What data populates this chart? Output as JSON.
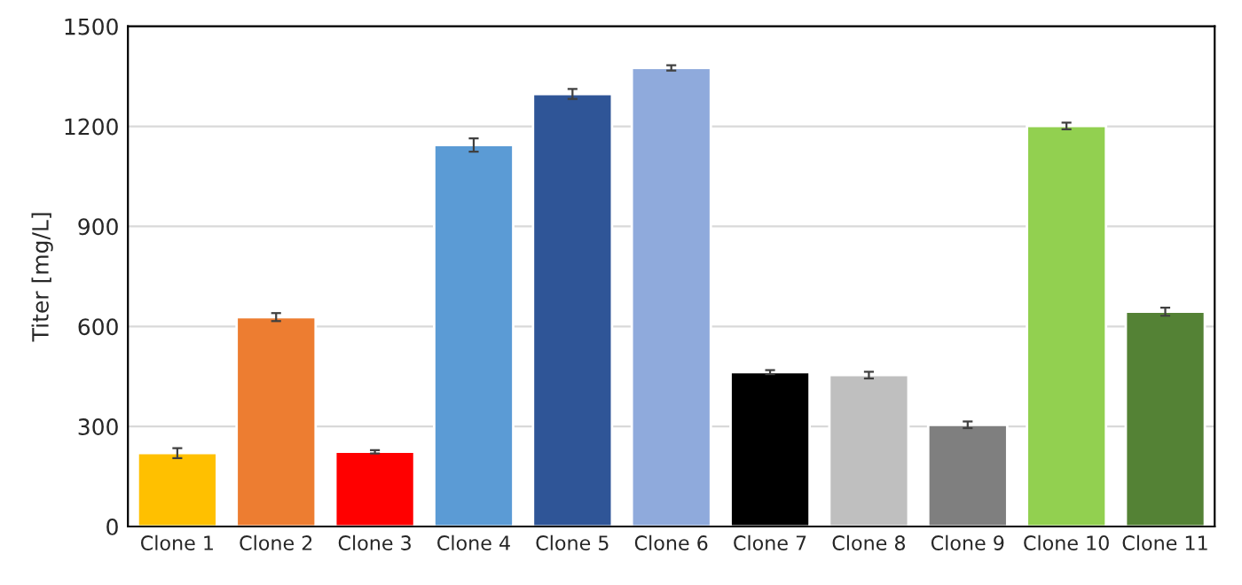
{
  "chart_data": {
    "type": "bar",
    "ylabel": "Titer [mg/L]",
    "categories": [
      "Clone 1",
      "Clone 2",
      "Clone 3",
      "Clone 4",
      "Clone 5",
      "Clone 6",
      "Clone 7",
      "Clone 8",
      "Clone 9",
      "Clone 10",
      "Clone 11"
    ],
    "values": [
      220,
      628,
      224,
      1144,
      1297,
      1375,
      463,
      454,
      305,
      1201,
      644
    ],
    "errors": [
      15,
      12,
      5,
      20,
      15,
      8,
      6,
      10,
      10,
      10,
      12
    ],
    "colors": [
      "#ffc000",
      "#ed7d31",
      "#ff0000",
      "#5b9bd5",
      "#2f5597",
      "#8faadc",
      "#000000",
      "#bfbfbf",
      "#7f7f7f",
      "#92d050",
      "#548235"
    ],
    "ylim": [
      0,
      1500
    ],
    "yticks": [
      0,
      300,
      600,
      900,
      1200,
      1500
    ],
    "grid": "y"
  }
}
